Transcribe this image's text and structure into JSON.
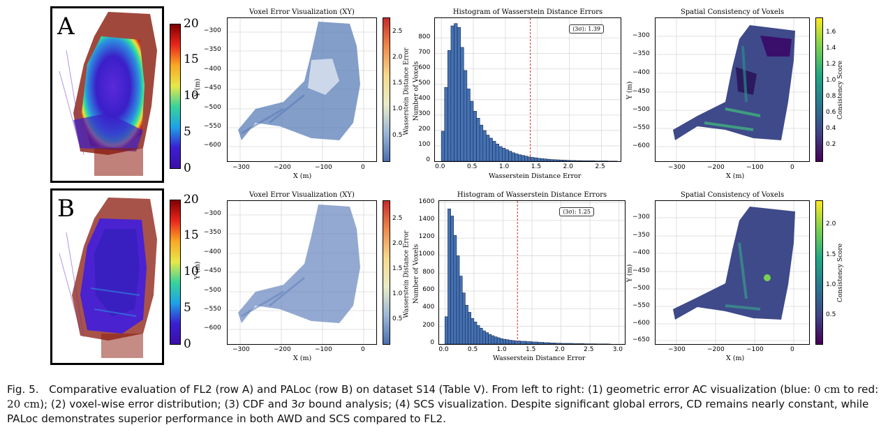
{
  "figure_label": "Fig. 5.",
  "caption_segments": [
    "Comparative evaluation of FL2 (row A) and PALoc (row B) on dataset ",
    "S14",
    " (Table V). From left to right: (1) geometric error AC visualization (blue: ",
    "0 cm",
    " to red: ",
    "20 cm",
    "); (2) voxel-wise error distribution; (3) CDF and 3",
    "σ",
    " bound analysis; (4) SCS visualization. Despite significant global errors, CD remains nearly constant, while PALoc demonstrates superior performance in both AWD and SCS compared to FL2."
  ],
  "rows": [
    {
      "letter": "A",
      "ac_colorbar_ticks": [
        "20",
        "15",
        "10",
        "5",
        "0"
      ],
      "voxel_panel": {
        "title": "Voxel Error Visualization (XY)",
        "xlabel": "X (m)",
        "ylabel": "Y (m)",
        "xticks": [
          "−300",
          "−200",
          "−100",
          "0"
        ],
        "yticks": [
          "−300",
          "−350",
          "−400",
          "−450",
          "−500",
          "−550",
          "−600"
        ],
        "cbar_label": "Wasserstein Distance Error",
        "cbar_ticks": [
          "2.5",
          "2.0",
          "1.5",
          "1.0",
          "0.5"
        ]
      },
      "hist_panel": {
        "title": "Histogram of Wasserstein Distance Errors",
        "xlabel": "Wasserstein Distance Error",
        "ylabel": "Number of Voxels",
        "xticks": [
          "0.0",
          "0.5",
          "1.0",
          "1.5",
          "2.0",
          "2.5"
        ],
        "yticks": [
          "0",
          "100",
          "200",
          "300",
          "400",
          "500",
          "600",
          "700",
          "800"
        ],
        "sigma_text": "⟨3σ⟩: 1.39"
      },
      "scs_panel": {
        "title": "Spatial Consistency of Voxels",
        "xlabel": "X (m)",
        "ylabel": "Y (m)",
        "xticks": [
          "−300",
          "−200",
          "−100",
          "0"
        ],
        "yticks": [
          "−300",
          "−350",
          "−400",
          "−450",
          "−500",
          "−550",
          "−600"
        ],
        "cbar_label": "Consistency Score",
        "cbar_ticks": [
          "1.6",
          "1.4",
          "1.2",
          "1.0",
          "0.8",
          "0.6",
          "0.4",
          "0.2"
        ]
      }
    },
    {
      "letter": "B",
      "ac_colorbar_ticks": [
        "20",
        "15",
        "10",
        "5",
        "0"
      ],
      "voxel_panel": {
        "title": "Voxel Error Visualization (XY)",
        "xlabel": "X (m)",
        "ylabel": "Y (m)",
        "xticks": [
          "−300",
          "−200",
          "−100",
          "0"
        ],
        "yticks": [
          "−300",
          "−350",
          "−400",
          "−450",
          "−500",
          "−550",
          "−600"
        ],
        "cbar_label": "Wasserstein Distance Error",
        "cbar_ticks": [
          "2.5",
          "2.0",
          "1.5",
          "1.0",
          "0.5"
        ]
      },
      "hist_panel": {
        "title": "Histogram of Wasserstein Distance Errors",
        "xlabel": "Wasserstein Distance Error",
        "ylabel": "Number of Voxels",
        "xticks": [
          "0.0",
          "0.5",
          "1.0",
          "1.5",
          "2.0",
          "2.5",
          "3.0"
        ],
        "yticks": [
          "0",
          "200",
          "400",
          "600",
          "800",
          "1000",
          "1200",
          "1400",
          "1600"
        ],
        "sigma_text": "⟨3σ⟩: 1.25"
      },
      "scs_panel": {
        "title": "Spatial Consistency of Voxels",
        "xlabel": "X (m)",
        "ylabel": "Y (m)",
        "xticks": [
          "−300",
          "−200",
          "−100",
          "0"
        ],
        "yticks": [
          "−300",
          "−350",
          "−400",
          "−450",
          "−500",
          "−550",
          "−600",
          "−650"
        ],
        "cbar_label": "Consistency Score",
        "cbar_ticks": [
          "2.0",
          "1.5",
          "1.0",
          "0.5"
        ]
      }
    }
  ],
  "chart_data": [
    {
      "type": "bar",
      "title": "Histogram of Wasserstein Distance Errors",
      "xlabel": "Wasserstein Distance Error",
      "ylabel": "Number of Voxels",
      "bin_width": 0.05,
      "x": [
        0.0,
        0.05,
        0.1,
        0.15,
        0.2,
        0.25,
        0.3,
        0.35,
        0.4,
        0.45,
        0.5,
        0.55,
        0.6,
        0.65,
        0.7,
        0.75,
        0.8,
        0.85,
        0.9,
        0.95,
        1.0,
        1.05,
        1.1,
        1.15,
        1.2,
        1.25,
        1.3,
        1.35,
        1.4,
        1.45,
        1.5,
        1.55,
        1.6,
        1.65,
        1.7,
        1.75,
        1.8,
        1.85,
        1.9,
        1.95,
        2.0,
        2.1,
        2.2,
        2.3,
        2.4,
        2.5,
        2.6,
        2.7
      ],
      "values": [
        195,
        480,
        720,
        880,
        895,
        870,
        740,
        590,
        470,
        390,
        325,
        280,
        235,
        200,
        170,
        150,
        130,
        112,
        95,
        85,
        75,
        65,
        55,
        48,
        42,
        38,
        33,
        28,
        25,
        22,
        19,
        17,
        15,
        13,
        11,
        10,
        9,
        8,
        7,
        6,
        5,
        4,
        3,
        3,
        2,
        2,
        1,
        1
      ],
      "xlim": [
        -0.1,
        2.8
      ],
      "ylim": [
        0,
        930
      ],
      "sigma3": 1.39
    },
    {
      "type": "bar",
      "title": "Histogram of Wasserstein Distance Errors",
      "xlabel": "Wasserstein Distance Error",
      "ylabel": "Number of Voxels",
      "bin_width": 0.05,
      "x": [
        0.0,
        0.05,
        0.1,
        0.15,
        0.2,
        0.25,
        0.3,
        0.35,
        0.4,
        0.45,
        0.5,
        0.55,
        0.6,
        0.65,
        0.7,
        0.75,
        0.8,
        0.85,
        0.9,
        0.95,
        1.0,
        1.05,
        1.1,
        1.15,
        1.2,
        1.3,
        1.4,
        1.5,
        1.6,
        1.7,
        1.8,
        1.9,
        2.0,
        2.2,
        2.4,
        2.6,
        2.8
      ],
      "values": [
        310,
        1530,
        1450,
        1230,
        1000,
        770,
        580,
        440,
        360,
        290,
        250,
        210,
        180,
        150,
        130,
        110,
        95,
        82,
        72,
        62,
        55,
        50,
        44,
        40,
        36,
        32,
        28,
        24,
        20,
        16,
        13,
        10,
        8,
        5,
        3,
        2,
        1
      ],
      "xlim": [
        -0.1,
        3.1
      ],
      "ylim": [
        0,
        1620
      ],
      "sigma3": 1.25
    }
  ]
}
